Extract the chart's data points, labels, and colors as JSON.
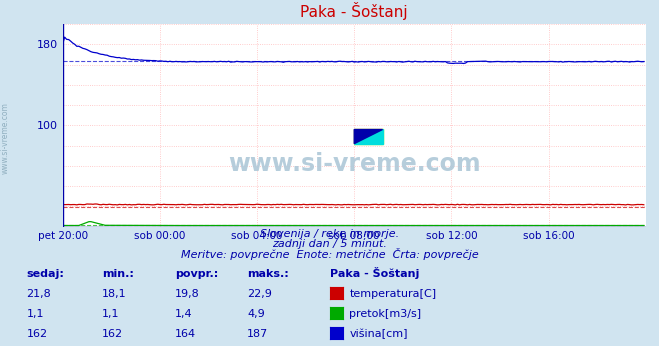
{
  "title": "Paka - Šoštanj",
  "bg_color": "#d0e4f0",
  "plot_bg_color": "#ffffff",
  "xlabel_ticks": [
    "pet 20:00",
    "sob 00:00",
    "sob 04:00",
    "sob 08:00",
    "sob 12:00",
    "sob 16:00"
  ],
  "yticks": [
    100,
    180
  ],
  "ymin": 0,
  "ymax": 200,
  "xmin": 0,
  "xmax": 288,
  "subtitle_line1": "Slovenija / reke in morje.",
  "subtitle_line2": "zadnji dan / 5 minut.",
  "subtitle_line3": "Meritve: povprečne  Enote: metrične  Črta: povprečje",
  "table_headers": [
    "sedaj:",
    "min.:",
    "povpr.:",
    "maks.:"
  ],
  "table_col5_header": "Paka - Šoštanj",
  "table_rows": [
    {
      "sedaj": "21,8",
      "min": "18,1",
      "povpr": "19,8",
      "maks": "22,9",
      "label": "temperatura[C]",
      "color": "#cc0000"
    },
    {
      "sedaj": "1,1",
      "min": "1,1",
      "povpr": "1,4",
      "maks": "4,9",
      "label": "pretok[m3/s]",
      "color": "#00aa00"
    },
    {
      "sedaj": "162",
      "min": "162",
      "povpr": "164",
      "maks": "187",
      "label": "višina[cm]",
      "color": "#0000cc"
    }
  ],
  "watermark": "www.si-vreme.com",
  "watermark_color": "#aec8d8",
  "side_label": "www.si-vreme.com",
  "title_color": "#cc0000",
  "axis_label_color": "#0000aa",
  "temp_color": "#cc0000",
  "pretok_color": "#00aa00",
  "visina_color": "#0000cc",
  "grid_h_color": "#ffbbbb",
  "grid_v_color": "#ffbbbb",
  "temperatura_avg": 19.8,
  "pretok_avg": 1.4,
  "visina_avg": 164.0,
  "temp_min": 18.1,
  "temp_max": 22.9,
  "pretok_min": 1.1,
  "pretok_max": 4.9,
  "visina_min": 162.0,
  "visina_max": 187.0
}
